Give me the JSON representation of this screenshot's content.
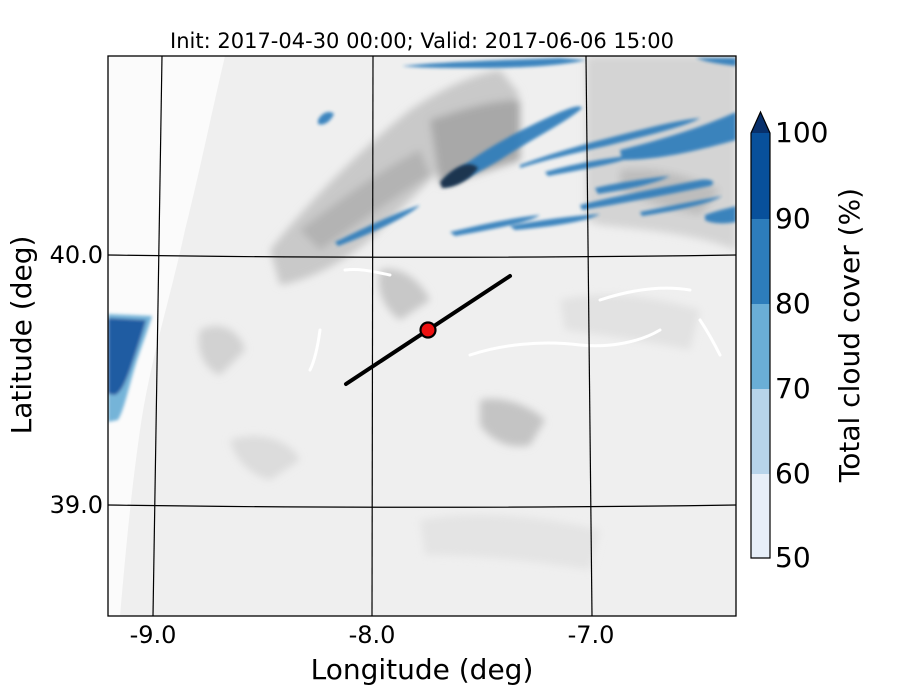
{
  "map": {
    "title": "Init: 2017-04-30 00:00; Valid: 2017-06-06 15:00",
    "xlabel": "Longitude (deg)",
    "ylabel": "Latitude (deg)",
    "lon_ticks": [
      "-9.0",
      "-8.0",
      "-7.0"
    ],
    "lat_ticks": [
      "40.0",
      "39.0"
    ],
    "background": "grayscale shaded terrain",
    "cloud_field": "Total cloud cover",
    "cross_section_line": {
      "color": "#000000"
    },
    "marker": {
      "color": "#ee1111",
      "edge_color": "#000000"
    }
  },
  "colorbar": {
    "label": "Total cloud cover (%)",
    "ticks": [
      "50",
      "60",
      "70",
      "80",
      "90",
      "100"
    ],
    "colors": [
      "#e7eff8",
      "#b7d4ea",
      "#6aaed6",
      "#2d7dbb",
      "#08509b",
      "#08306b"
    ],
    "extend": "max"
  }
}
